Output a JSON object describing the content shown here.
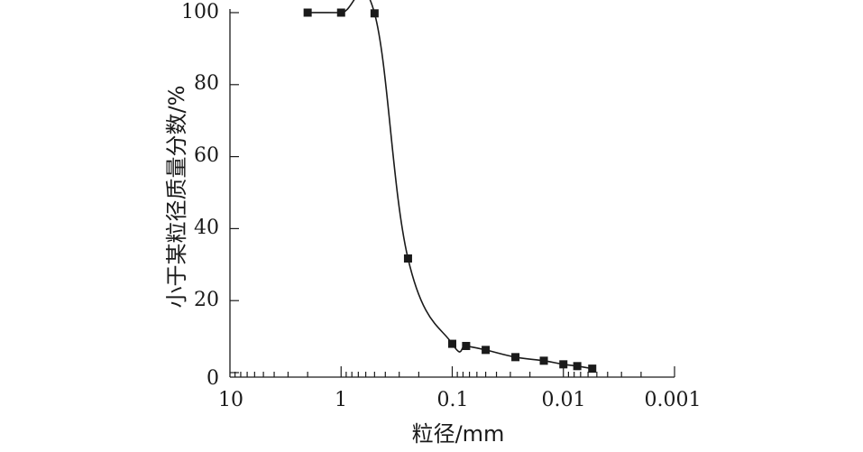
{
  "chart_data": {
    "type": "line",
    "title": "",
    "xlabel": "粒径/mm",
    "ylabel": "小于某粒径质量分数/%",
    "x_scale": "log",
    "x_reversed": true,
    "xlim": [
      10,
      0.001
    ],
    "ylim": [
      0,
      100
    ],
    "x_tick_labels": [
      "10",
      "1",
      "0.1",
      "0.01",
      "0.001"
    ],
    "y_tick_labels": [
      "0",
      "20",
      "40",
      "60",
      "80",
      "100"
    ],
    "x_ticks": [
      10,
      1,
      0.1,
      0.01,
      0.001
    ],
    "y_ticks": [
      0,
      20,
      40,
      60,
      80,
      100
    ],
    "grid": false,
    "legend": "none",
    "marker": "square",
    "line_color": "#1a1a1a",
    "series": [
      {
        "x": [
          2,
          1,
          0.5,
          0.25,
          0.1,
          0.075,
          0.05,
          0.027,
          0.015,
          0.01,
          0.0075,
          0.0055
        ],
        "y": [
          100,
          100,
          99.8,
          31.7,
          8,
          7.4,
          6.3,
          4.3,
          3.3,
          2.3,
          1.8,
          1.1
        ]
      }
    ]
  }
}
